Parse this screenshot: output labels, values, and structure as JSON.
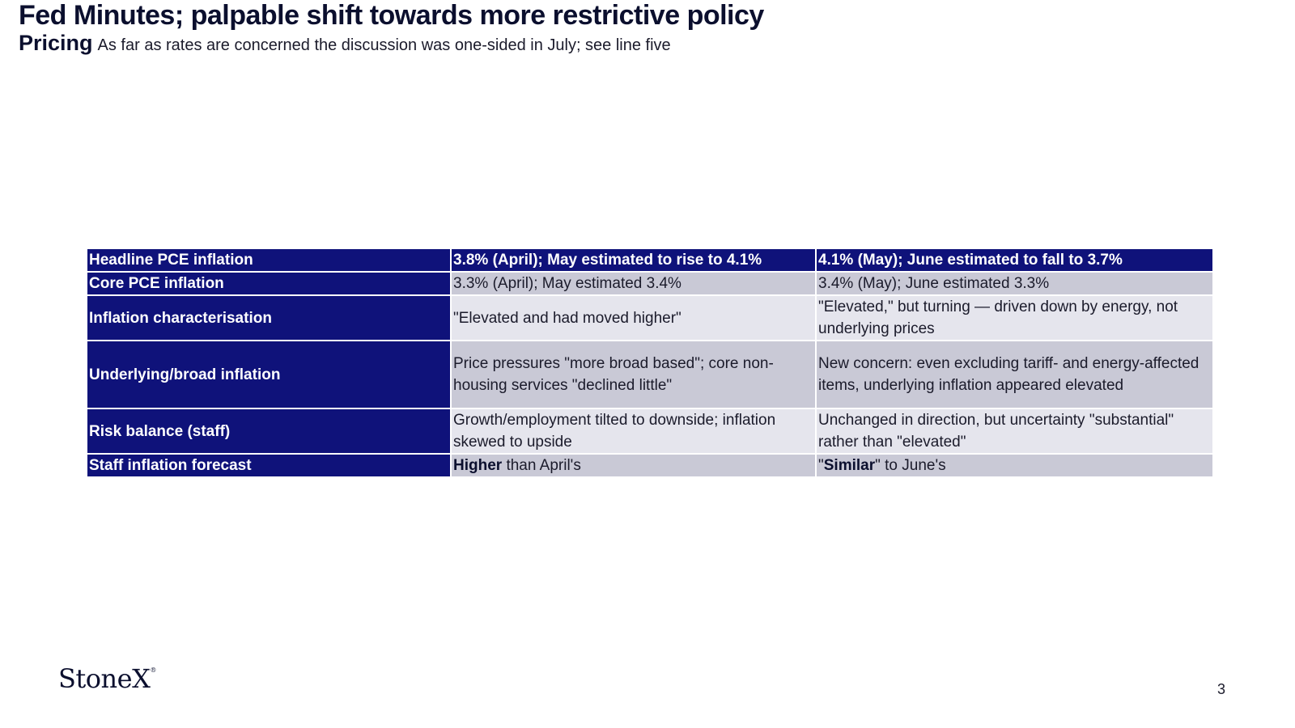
{
  "slide": {
    "title": "Fed Minutes; palpable shift towards more restrictive policy",
    "kicker": "Pricing",
    "description": "As far as rates are concerned the discussion was one-sided in July; see line five",
    "page_number": "3"
  },
  "brand": {
    "logo_text": "StoneX",
    "logo_mark": "®"
  },
  "colors": {
    "header_navy": "#0f127a",
    "row_shade": "#c9c9d6",
    "row_light": "#e5e5ed"
  },
  "table": {
    "header": {
      "label": "Headline PCE inflation",
      "col1": "3.8% (April); May estimated to rise to 4.1%",
      "col2": "4.1% (May); June estimated to fall to 3.7%"
    },
    "rows": [
      {
        "label": "Core PCE inflation",
        "col1": "3.3% (April); May estimated 3.4%",
        "col2": "3.4% (May); June estimated 3.3%"
      },
      {
        "label": "Inflation characterisation",
        "col1": "\"Elevated and had moved higher\"",
        "col2": "\"Elevated,\" but turning — driven down by energy, not underlying prices"
      },
      {
        "label": "Underlying/broad inflation",
        "col1": "Price pressures \"more broad based\"; core non-housing services \"declined little\"",
        "col2": "New concern: even excluding tariff- and energy-affected items, underlying inflation appeared elevated"
      },
      {
        "label": "Risk balance (staff)",
        "col1": "Growth/employment tilted to downside; inflation skewed to upside",
        "col2": "Unchanged in direction, but uncertainty \"substantial\" rather than \"elevated\""
      },
      {
        "label": "Staff inflation forecast",
        "col1_bold": "Higher",
        "col1_rest": " than April's",
        "col2_prefix": "\"",
        "col2_bold": "Similar",
        "col2_rest": "\" to June's"
      }
    ]
  }
}
